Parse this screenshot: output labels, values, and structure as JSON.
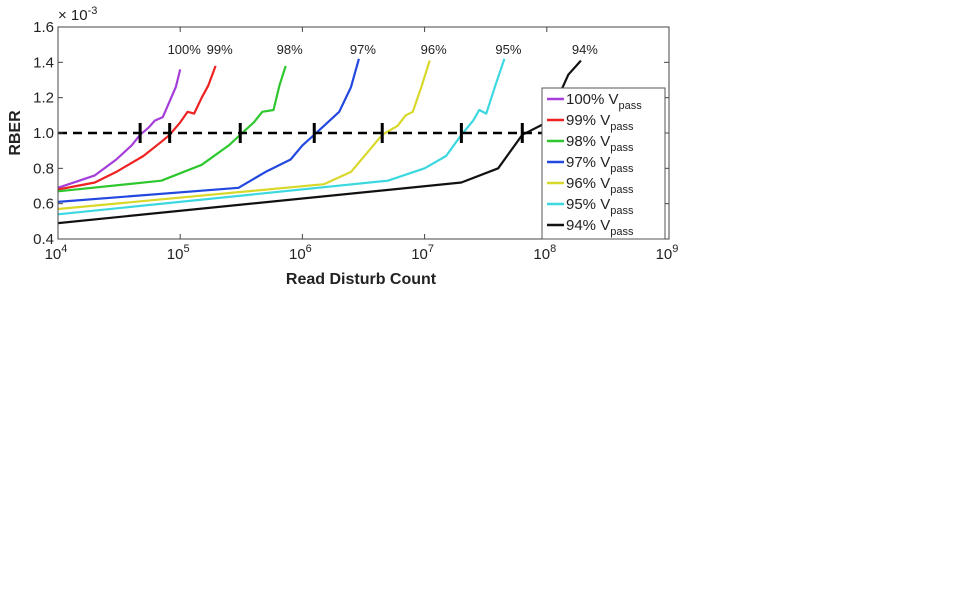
{
  "chart_data": {
    "type": "line",
    "title": "",
    "xlabel": "Read Disturb Count",
    "ylabel": "RBER",
    "y_multiplier_label": "× 10",
    "y_multiplier_exp": "-3",
    "xscale": "log",
    "xlim": [
      10000,
      1000000000
    ],
    "ylim": [
      0.4,
      1.6
    ],
    "x_ticks": [
      {
        "value": 10000,
        "base": "10",
        "exp": "4"
      },
      {
        "value": 100000,
        "base": "10",
        "exp": "5"
      },
      {
        "value": 1000000,
        "base": "10",
        "exp": "6"
      },
      {
        "value": 10000000,
        "base": "10",
        "exp": "7"
      },
      {
        "value": 100000000,
        "base": "10",
        "exp": "8"
      },
      {
        "value": 1000000000,
        "base": "10",
        "exp": "9"
      }
    ],
    "y_ticks": [
      "0.4",
      "0.6",
      "0.8",
      "1.0",
      "1.2",
      "1.4",
      "1.6"
    ],
    "threshold": {
      "y": 1.0
    },
    "legend_position": "right",
    "series": [
      {
        "name": "100%",
        "legend": "100% V",
        "sub": "pass",
        "color": "#a53dd9",
        "points": [
          [
            10000,
            0.69
          ],
          [
            20000,
            0.76
          ],
          [
            30000,
            0.85
          ],
          [
            40000,
            0.93
          ],
          [
            47000,
            0.99
          ],
          [
            55000,
            1.03
          ],
          [
            62000,
            1.07
          ],
          [
            72000,
            1.09
          ],
          [
            82000,
            1.18
          ],
          [
            92000,
            1.26
          ],
          [
            100000,
            1.36
          ]
        ],
        "crossing": 47000
      },
      {
        "name": "99%",
        "legend": "99% V",
        "sub": "pass",
        "color": "#ee2222",
        "points": [
          [
            10000,
            0.68
          ],
          [
            20000,
            0.72
          ],
          [
            30000,
            0.78
          ],
          [
            50000,
            0.87
          ],
          [
            70000,
            0.95
          ],
          [
            82000,
            0.99
          ],
          [
            100000,
            1.06
          ],
          [
            115000,
            1.12
          ],
          [
            130000,
            1.11
          ],
          [
            150000,
            1.2
          ],
          [
            170000,
            1.27
          ],
          [
            195000,
            1.38
          ]
        ],
        "crossing": 82000
      },
      {
        "name": "98%",
        "legend": "98% V",
        "sub": "pass",
        "color": "#2ec82e",
        "points": [
          [
            10000,
            0.67
          ],
          [
            70000,
            0.73
          ],
          [
            150000,
            0.82
          ],
          [
            250000,
            0.93
          ],
          [
            310000,
            0.99
          ],
          [
            400000,
            1.06
          ],
          [
            470000,
            1.12
          ],
          [
            580000,
            1.13
          ],
          [
            650000,
            1.27
          ],
          [
            730000,
            1.38
          ]
        ],
        "crossing": 310000
      },
      {
        "name": "97%",
        "legend": "97% V",
        "sub": "pass",
        "color": "#2248e0",
        "points": [
          [
            10000,
            0.61
          ],
          [
            300000,
            0.69
          ],
          [
            500000,
            0.78
          ],
          [
            800000,
            0.85
          ],
          [
            1000000,
            0.93
          ],
          [
            1250000,
            0.99
          ],
          [
            1500000,
            1.04
          ],
          [
            2000000,
            1.12
          ],
          [
            2500000,
            1.26
          ],
          [
            2900000,
            1.42
          ]
        ],
        "crossing": 1250000
      },
      {
        "name": "96%",
        "legend": "96% V",
        "sub": "pass",
        "color": "#d8d82a",
        "points": [
          [
            10000,
            0.57
          ],
          [
            1500000,
            0.71
          ],
          [
            2500000,
            0.78
          ],
          [
            3500000,
            0.9
          ],
          [
            4500000,
            0.99
          ],
          [
            6000000,
            1.04
          ],
          [
            7000000,
            1.1
          ],
          [
            8000000,
            1.12
          ],
          [
            9500000,
            1.27
          ],
          [
            11000000,
            1.41
          ]
        ],
        "crossing": 4500000
      },
      {
        "name": "95%",
        "legend": "95% V",
        "sub": "pass",
        "color": "#3cd8e0",
        "points": [
          [
            10000,
            0.54
          ],
          [
            5000000,
            0.73
          ],
          [
            10000000,
            0.8
          ],
          [
            15000000,
            0.87
          ],
          [
            20000000,
            0.99
          ],
          [
            25000000,
            1.07
          ],
          [
            28000000,
            1.13
          ],
          [
            32000000,
            1.11
          ],
          [
            38000000,
            1.27
          ],
          [
            45000000,
            1.42
          ]
        ],
        "crossing": 20000000
      },
      {
        "name": "94%",
        "legend": "94% V",
        "sub": "pass",
        "color": "#111111",
        "points": [
          [
            10000,
            0.49
          ],
          [
            20000000,
            0.72
          ],
          [
            40000000,
            0.8
          ],
          [
            63000000,
            0.99
          ],
          [
            100000000,
            1.06
          ],
          [
            150000000,
            1.33
          ],
          [
            190000000,
            1.41
          ]
        ],
        "crossing": 63000000
      }
    ]
  }
}
